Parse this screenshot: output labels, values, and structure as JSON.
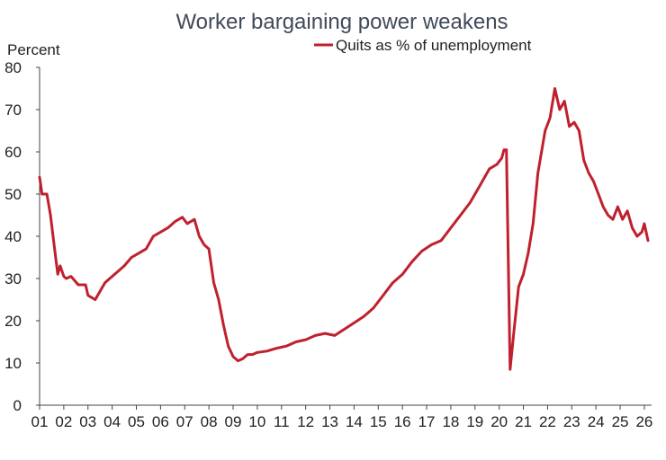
{
  "chart_data": {
    "type": "line",
    "title": "Worker bargaining power weakens",
    "ylabel": "Percent",
    "xlabel": "",
    "ylim": [
      0,
      80
    ],
    "yticks": [
      0,
      10,
      20,
      30,
      40,
      50,
      60,
      70,
      80
    ],
    "xlim": [
      2001.0,
      2026.3
    ],
    "xtick_labels": [
      "01",
      "02",
      "03",
      "04",
      "05",
      "06",
      "07",
      "08",
      "09",
      "10",
      "11",
      "12",
      "13",
      "14",
      "15",
      "16",
      "17",
      "18",
      "19",
      "20",
      "21",
      "22",
      "23",
      "24",
      "25",
      "26"
    ],
    "grid": false,
    "legend": "top-center",
    "series": [
      {
        "name": "Quits as % of unemployment",
        "color": "#c0202e",
        "x": [
          2001.0,
          2001.1,
          2001.3,
          2001.45,
          2001.6,
          2001.75,
          2001.85,
          2002.0,
          2002.1,
          2002.3,
          2002.6,
          2002.9,
          2003.0,
          2003.3,
          2003.5,
          2003.7,
          2003.9,
          2004.2,
          2004.5,
          2004.8,
          2005.1,
          2005.4,
          2005.7,
          2006.0,
          2006.3,
          2006.6,
          2006.9,
          2007.1,
          2007.4,
          2007.6,
          2007.8,
          2008.0,
          2008.2,
          2008.4,
          2008.6,
          2008.8,
          2009.0,
          2009.2,
          2009.4,
          2009.6,
          2009.8,
          2010.0,
          2010.4,
          2010.8,
          2011.2,
          2011.6,
          2012.0,
          2012.4,
          2012.8,
          2013.2,
          2013.6,
          2014.0,
          2014.4,
          2014.8,
          2015.2,
          2015.6,
          2016.0,
          2016.4,
          2016.8,
          2017.2,
          2017.6,
          2018.0,
          2018.4,
          2018.8,
          2019.2,
          2019.6,
          2019.9,
          2020.1,
          2020.2,
          2020.3,
          2020.45,
          2020.6,
          2020.8,
          2021.0,
          2021.2,
          2021.4,
          2021.6,
          2021.75,
          2021.9,
          2022.1,
          2022.3,
          2022.5,
          2022.7,
          2022.9,
          2023.1,
          2023.3,
          2023.5,
          2023.7,
          2023.9,
          2024.1,
          2024.3,
          2024.5,
          2024.7,
          2024.9,
          2025.1,
          2025.3,
          2025.5,
          2025.7,
          2025.9,
          2026.0,
          2026.15
        ],
        "values": [
          54,
          50,
          50,
          45,
          38,
          31,
          33,
          30.5,
          30,
          30.5,
          28.5,
          28.5,
          26,
          25,
          27,
          29,
          30,
          31.5,
          33,
          35,
          36,
          37,
          40,
          41,
          42,
          43.5,
          44.5,
          43,
          44,
          40,
          38,
          37,
          29,
          25,
          19,
          14,
          11.5,
          10.5,
          11,
          12,
          12,
          12.5,
          12.8,
          13.5,
          14,
          15,
          15.5,
          16.5,
          17,
          16.5,
          18,
          19.5,
          21,
          23,
          26,
          29,
          31,
          34,
          36.5,
          38,
          39,
          42,
          45,
          48,
          52,
          56,
          57,
          58.5,
          60.5,
          60.5,
          8.5,
          17,
          28,
          31,
          36,
          43,
          55,
          60,
          65,
          68,
          75,
          70,
          72,
          66,
          67,
          65,
          58,
          55,
          53,
          50,
          47,
          45,
          44,
          47,
          44,
          46,
          42,
          40,
          41,
          43,
          39
        ]
      }
    ]
  }
}
